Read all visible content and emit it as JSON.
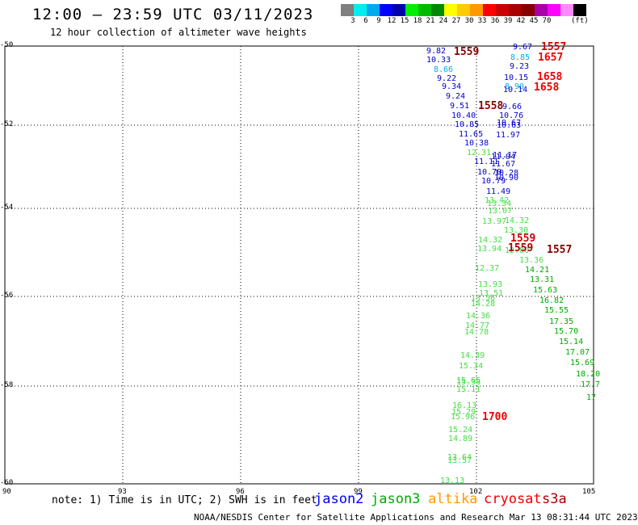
{
  "title": "12:00 – 23:59 UTC 03/11/2023",
  "subtitle": "12 hour collection of altimeter wave heights",
  "colorbar": {
    "colors": [
      "#7f7f7f",
      "#00eeee",
      "#00aaee",
      "#0000ff",
      "#0000aa",
      "#00ee00",
      "#00bb00",
      "#008800",
      "#ffff00",
      "#ffcc00",
      "#ff9900",
      "#ff0000",
      "#cc0000",
      "#aa0000",
      "#880000",
      "#aa00aa",
      "#ff00ff",
      "#ff88ff",
      "#000000"
    ],
    "labels": [
      "3",
      "6",
      "9",
      "12",
      "15",
      "18",
      "21",
      "24",
      "27",
      "30",
      "33",
      "36",
      "39",
      "42",
      "45",
      "70"
    ],
    "unit": "(ft)"
  },
  "axes": {
    "lat_labels": [
      "-50",
      "-52",
      "-54",
      "-56",
      "-58",
      "-60"
    ],
    "lon_labels": [
      "90",
      "93",
      "96",
      "99",
      "102",
      "105"
    ]
  },
  "tracks": {
    "jason2": [
      "9.82",
      "10.33",
      "8.66",
      "9.22",
      "9.34",
      "9.24",
      "9.51",
      "10.40",
      "10.85",
      "11.65",
      "10.38"
    ],
    "jason2_east": [
      "9.67",
      "8.85",
      "9.23",
      "10.15",
      "8.90",
      "10.14",
      "9.66",
      "10.76",
      "10.67",
      "10.63",
      "11.97",
      "11.17",
      "11.04",
      "11.67",
      "11.11",
      "10.70",
      "10.28",
      "10.79",
      "10.90",
      "11.49"
    ],
    "jason3": [
      "12.31",
      "13.42",
      "13.34",
      "13.07",
      "13.97",
      "14.32",
      "13.30",
      "14.32",
      "13.94",
      "12.80",
      "13.36",
      "12.37",
      "13.93",
      "13.51",
      "13.56",
      "14.28",
      "14.36",
      "14.77",
      "14.78",
      "14.39",
      "15.34",
      "15.65",
      "15.38",
      "15.11",
      "16.13",
      "15.29",
      "15.96",
      "15.24",
      "14.89",
      "13.64",
      "13.57",
      "13.13"
    ],
    "jason3_dark": [
      "14.21",
      "13.31",
      "15.63",
      "16.82",
      "15.55",
      "17.35",
      "15.70",
      "15.14",
      "17.07",
      "15.69",
      "18.20",
      "17.7",
      "17"
    ],
    "times": [
      "1559",
      "1557",
      "1657",
      "1658",
      "1658",
      "1558",
      "1559",
      "1559",
      "1557",
      "1700"
    ]
  },
  "note": "note: 1) Time is in UTC; 2) SWH is in feet",
  "satellites": [
    {
      "name": "jason2",
      "color": "#0000ee"
    },
    {
      "name": "jason3",
      "color": "#00aa00"
    },
    {
      "name": "altika",
      "color": "#ff9900"
    },
    {
      "name": "cryosat",
      "color": "#ee0000"
    },
    {
      "name": "s3a",
      "color": "#aa0000"
    }
  ],
  "footer": "NOAA/NESDIS Center for Satellite Applications and Research   Mar 13 08:31:44 UTC 2023"
}
